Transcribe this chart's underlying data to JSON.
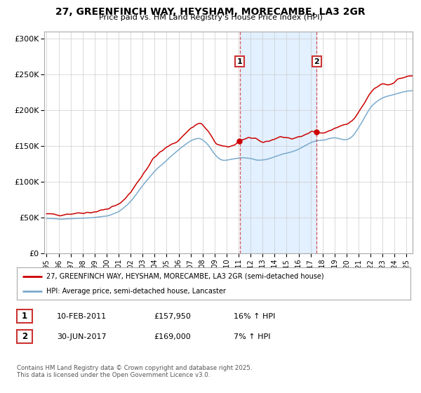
{
  "title_line1": "27, GREENFINCH WAY, HEYSHAM, MORECAMBE, LA3 2GR",
  "title_line2": "Price paid vs. HM Land Registry's House Price Index (HPI)",
  "ylabel_ticks": [
    "£0",
    "£50K",
    "£100K",
    "£150K",
    "£200K",
    "£250K",
    "£300K"
  ],
  "ytick_values": [
    0,
    50000,
    100000,
    150000,
    200000,
    250000,
    300000
  ],
  "ylim": [
    0,
    310000
  ],
  "xlim_start": 1994.8,
  "xlim_end": 2025.5,
  "red_color": "#cc0000",
  "blue_color": "#7aaacc",
  "shaded_color": "#ddeeff",
  "marker1_date": 2011.1,
  "marker2_date": 2017.5,
  "legend_line1": "27, GREENFINCH WAY, HEYSHAM, MORECAMBE, LA3 2GR (semi-detached house)",
  "legend_line2": "HPI: Average price, semi-detached house, Lancaster",
  "table_row1": [
    "1",
    "10-FEB-2011",
    "£157,950",
    "16% ↑ HPI"
  ],
  "table_row2": [
    "2",
    "30-JUN-2017",
    "£169,000",
    "7% ↑ HPI"
  ],
  "footer": "Contains HM Land Registry data © Crown copyright and database right 2025.\nThis data is licensed under the Open Government Licence v3.0.",
  "background_color": "#ffffff",
  "grid_color": "#cccccc"
}
